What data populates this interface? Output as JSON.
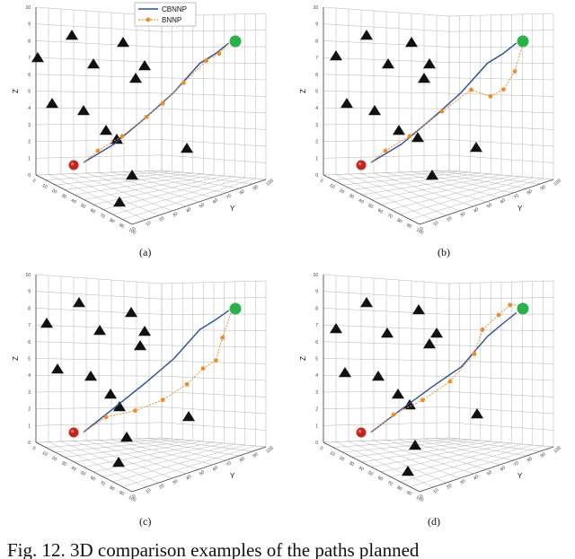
{
  "legend": {
    "cbnnp": "CBNNP",
    "bnnp": "BNNP"
  },
  "colors": {
    "cbnnp": "#2a4e9c",
    "bnnp": "#f08c2c",
    "start": "#c0281c",
    "goal": "#2bb04a",
    "obstacle": "#111111",
    "grid": "#b5b5b5"
  },
  "caption": "Fig. 12.  3D comparison examples of the paths planned",
  "axis": {
    "zlabel": "Z",
    "ylabel": "Y",
    "z_ticks": [
      "0",
      "1",
      "2",
      "3",
      "4",
      "5",
      "6",
      "7",
      "8",
      "9",
      "10"
    ],
    "base_ticks": [
      "0",
      "10",
      "20",
      "30",
      "40",
      "50",
      "60",
      "70",
      "80",
      "90",
      "100"
    ]
  },
  "chart_data": [
    {
      "type": "scatter3d",
      "panel": "(a)",
      "zlim": [
        0,
        10
      ],
      "series": [
        {
          "name": "CBNNP",
          "points": [
            [
              0.06,
              2.2
            ],
            [
              0.25,
              3.1
            ],
            [
              0.45,
              4.7
            ],
            [
              0.62,
              6.2
            ],
            [
              0.78,
              8.1
            ],
            [
              0.88,
              8.6
            ],
            [
              0.96,
              9.2
            ]
          ]
        },
        {
          "name": "BNNP",
          "points": [
            [
              0.06,
              2.2
            ],
            [
              0.15,
              2.9
            ],
            [
              0.3,
              3.6
            ],
            [
              0.45,
              4.7
            ],
            [
              0.55,
              5.5
            ],
            [
              0.68,
              6.8
            ],
            [
              0.82,
              8.2
            ],
            [
              0.9,
              8.5
            ],
            [
              0.96,
              9.2
            ]
          ]
        }
      ]
    },
    {
      "type": "scatter3d",
      "panel": "(b)",
      "zlim": [
        0,
        10
      ],
      "series": [
        {
          "name": "CBNNP",
          "points": [
            [
              0.06,
              2.2
            ],
            [
              0.25,
              3.1
            ],
            [
              0.45,
              4.7
            ],
            [
              0.62,
              6.2
            ],
            [
              0.78,
              8.1
            ],
            [
              0.88,
              8.6
            ],
            [
              0.96,
              9.2
            ]
          ]
        },
        {
          "name": "BNNP",
          "points": [
            [
              0.06,
              2.2
            ],
            [
              0.15,
              2.9
            ],
            [
              0.3,
              3.6
            ],
            [
              0.5,
              5.0
            ],
            [
              0.68,
              6.2
            ],
            [
              0.8,
              5.2
            ],
            [
              0.88,
              5.5
            ],
            [
              0.95,
              6.8
            ],
            [
              1.0,
              9.0
            ]
          ]
        }
      ]
    },
    {
      "type": "scatter3d",
      "panel": "(c)",
      "zlim": [
        0,
        10
      ],
      "series": [
        {
          "name": "CBNNP",
          "points": [
            [
              0.06,
              2.0
            ],
            [
              0.25,
              3.4
            ],
            [
              0.45,
              4.9
            ],
            [
              0.62,
              6.3
            ],
            [
              0.78,
              8.2
            ],
            [
              0.88,
              8.7
            ],
            [
              0.96,
              9.2
            ]
          ]
        },
        {
          "name": "BNNP",
          "points": [
            [
              0.06,
              2.0
            ],
            [
              0.2,
              2.8
            ],
            [
              0.38,
              2.7
            ],
            [
              0.55,
              3.0
            ],
            [
              0.7,
              3.8
            ],
            [
              0.8,
              4.8
            ],
            [
              0.88,
              5.2
            ],
            [
              0.92,
              7.0
            ],
            [
              0.98,
              9.2
            ]
          ]
        }
      ]
    },
    {
      "type": "scatter3d",
      "panel": "(d)",
      "zlim": [
        0,
        10
      ],
      "series": [
        {
          "name": "CBNNP",
          "points": [
            [
              0.06,
              2.0
            ],
            [
              0.25,
              3.3
            ],
            [
              0.45,
              4.6
            ],
            [
              0.62,
              5.6
            ],
            [
              0.78,
              7.6
            ],
            [
              0.88,
              8.4
            ],
            [
              0.96,
              9.0
            ]
          ]
        },
        {
          "name": "BNNP",
          "points": [
            [
              0.06,
              2.0
            ],
            [
              0.2,
              3.0
            ],
            [
              0.38,
              3.6
            ],
            [
              0.55,
              4.6
            ],
            [
              0.7,
              6.4
            ],
            [
              0.75,
              8.3
            ],
            [
              0.85,
              9.2
            ],
            [
              0.92,
              9.8
            ],
            [
              0.98,
              9.6
            ]
          ]
        }
      ]
    }
  ]
}
